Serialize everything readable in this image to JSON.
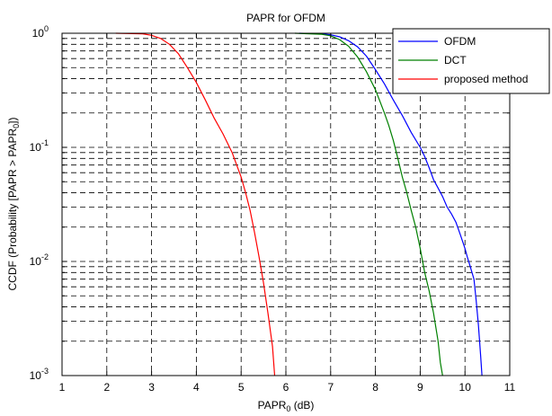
{
  "chart_data": {
    "type": "line",
    "title": "PAPR for OFDM",
    "xlabel": {
      "base": "PAPR",
      "sub": "0",
      "rest": " (dB)"
    },
    "ylabel": {
      "pre": "CCDF (Probability [PAPR > PAPR",
      "sub": "0",
      "post": "])"
    },
    "xlim": [
      1,
      11
    ],
    "ylim": [
      0.001,
      1
    ],
    "yscale": "log",
    "grid": true,
    "grid_style": "dashed",
    "legend_position": "top-right",
    "x_ticks": [
      "1",
      "2",
      "3",
      "4",
      "5",
      "6",
      "7",
      "8",
      "9",
      "10",
      "11"
    ],
    "y_ticks": [
      {
        "base": "10",
        "exp": "0",
        "value": 1
      },
      {
        "base": "10",
        "exp": "-1",
        "value": 0.1
      },
      {
        "base": "10",
        "exp": "-2",
        "value": 0.01
      },
      {
        "base": "10",
        "exp": "-3",
        "value": 0.001
      }
    ],
    "series": [
      {
        "name": "OFDM",
        "color": "#0000ff",
        "points": [
          [
            6.3,
            1.0
          ],
          [
            6.8,
            0.99
          ],
          [
            7.0,
            0.97
          ],
          [
            7.2,
            0.93
          ],
          [
            7.4,
            0.86
          ],
          [
            7.6,
            0.76
          ],
          [
            7.8,
            0.63
          ],
          [
            8.0,
            0.48
          ],
          [
            8.2,
            0.36
          ],
          [
            8.4,
            0.26
          ],
          [
            8.6,
            0.19
          ],
          [
            8.8,
            0.135
          ],
          [
            9.0,
            0.1
          ],
          [
            9.1,
            0.083
          ],
          [
            9.2,
            0.066
          ],
          [
            9.3,
            0.052
          ],
          [
            9.4,
            0.044
          ],
          [
            9.5,
            0.037
          ],
          [
            9.6,
            0.03
          ],
          [
            9.7,
            0.026
          ],
          [
            9.8,
            0.022
          ],
          [
            9.9,
            0.017
          ],
          [
            10.0,
            0.013
          ],
          [
            10.05,
            0.011
          ],
          [
            10.1,
            0.0095
          ],
          [
            10.2,
            0.007
          ],
          [
            10.25,
            0.0045
          ],
          [
            10.3,
            0.0028
          ],
          [
            10.35,
            0.0015
          ],
          [
            10.38,
            0.001
          ]
        ]
      },
      {
        "name": "DCT",
        "color": "#008000",
        "points": [
          [
            6.2,
            1.0
          ],
          [
            6.8,
            0.98
          ],
          [
            7.0,
            0.95
          ],
          [
            7.2,
            0.88
          ],
          [
            7.4,
            0.77
          ],
          [
            7.6,
            0.62
          ],
          [
            7.8,
            0.46
          ],
          [
            8.0,
            0.32
          ],
          [
            8.2,
            0.2
          ],
          [
            8.3,
            0.155
          ],
          [
            8.4,
            0.115
          ],
          [
            8.5,
            0.08
          ],
          [
            8.6,
            0.055
          ],
          [
            8.7,
            0.04
          ],
          [
            8.8,
            0.028
          ],
          [
            8.9,
            0.02
          ],
          [
            9.0,
            0.013
          ],
          [
            9.1,
            0.008
          ],
          [
            9.2,
            0.0055
          ],
          [
            9.3,
            0.0035
          ],
          [
            9.4,
            0.002
          ],
          [
            9.45,
            0.0013
          ],
          [
            9.5,
            0.001
          ]
        ]
      },
      {
        "name": "proposed method",
        "color": "#ff0000",
        "points": [
          [
            2.2,
            1.0
          ],
          [
            2.8,
            0.99
          ],
          [
            3.0,
            0.96
          ],
          [
            3.2,
            0.9
          ],
          [
            3.4,
            0.8
          ],
          [
            3.6,
            0.66
          ],
          [
            3.8,
            0.5
          ],
          [
            4.0,
            0.37
          ],
          [
            4.2,
            0.26
          ],
          [
            4.4,
            0.18
          ],
          [
            4.6,
            0.13
          ],
          [
            4.8,
            0.09
          ],
          [
            5.0,
            0.055
          ],
          [
            5.1,
            0.04
          ],
          [
            5.2,
            0.028
          ],
          [
            5.3,
            0.018
          ],
          [
            5.4,
            0.011
          ],
          [
            5.5,
            0.0065
          ],
          [
            5.6,
            0.0035
          ],
          [
            5.7,
            0.0018
          ],
          [
            5.75,
            0.001
          ]
        ]
      }
    ]
  }
}
